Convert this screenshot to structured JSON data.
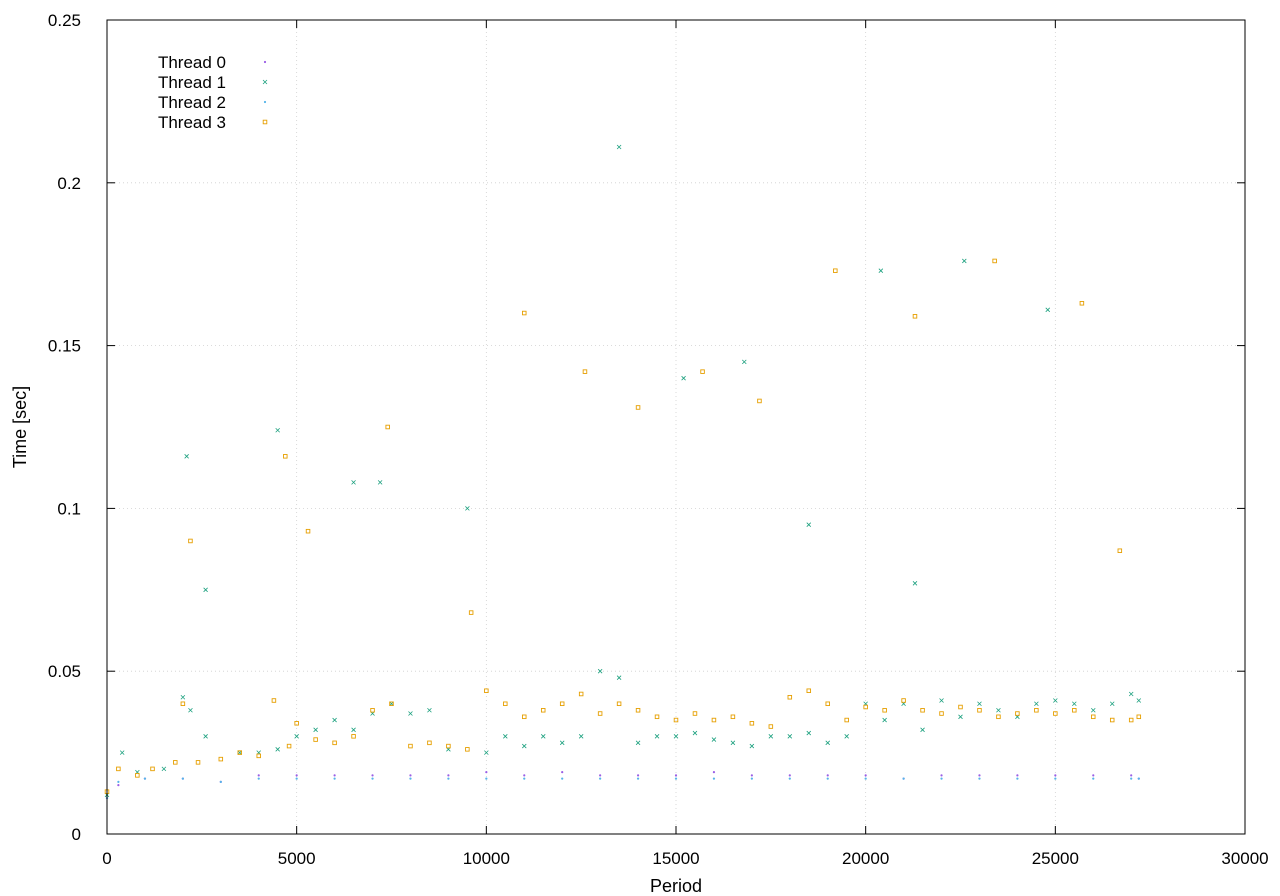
{
  "chart_data": {
    "type": "scatter",
    "xlabel": "Period",
    "ylabel": "Time [sec]",
    "xlim": [
      0,
      30000
    ],
    "ylim": [
      0,
      0.25
    ],
    "xticks": [
      "0",
      "5000",
      "10000",
      "15000",
      "20000",
      "25000",
      "30000"
    ],
    "yticks": [
      "0",
      "0.05",
      "0.1",
      "0.15",
      "0.2",
      "0.25"
    ],
    "grid": true,
    "legend_position": "top-left",
    "series": [
      {
        "name": "Thread 0",
        "color": "#9a5ee6",
        "marker": "dot",
        "points": [
          [
            0,
            0.011
          ],
          [
            300,
            0.015
          ],
          [
            1000,
            0.017
          ],
          [
            2000,
            0.017
          ],
          [
            3000,
            0.016
          ],
          [
            4000,
            0.018
          ],
          [
            5000,
            0.018
          ],
          [
            6000,
            0.018
          ],
          [
            7000,
            0.018
          ],
          [
            8000,
            0.018
          ],
          [
            9000,
            0.018
          ],
          [
            10000,
            0.019
          ],
          [
            11000,
            0.018
          ],
          [
            12000,
            0.019
          ],
          [
            13000,
            0.018
          ],
          [
            14000,
            0.018
          ],
          [
            15000,
            0.018
          ],
          [
            16000,
            0.019
          ],
          [
            17000,
            0.018
          ],
          [
            18000,
            0.018
          ],
          [
            19000,
            0.018
          ],
          [
            20000,
            0.018
          ],
          [
            21000,
            0.017
          ],
          [
            22000,
            0.018
          ],
          [
            23000,
            0.018
          ],
          [
            24000,
            0.018
          ],
          [
            25000,
            0.018
          ],
          [
            26000,
            0.018
          ],
          [
            27000,
            0.018
          ],
          [
            27200,
            0.017
          ]
        ]
      },
      {
        "name": "Thread 1",
        "color": "#1ba07e",
        "marker": "cross",
        "points": [
          [
            0,
            0.012
          ],
          [
            400,
            0.025
          ],
          [
            800,
            0.019
          ],
          [
            1500,
            0.02
          ],
          [
            2000,
            0.042
          ],
          [
            2200,
            0.038
          ],
          [
            2600,
            0.03
          ],
          [
            3500,
            0.025
          ],
          [
            4000,
            0.025
          ],
          [
            4500,
            0.026
          ],
          [
            5000,
            0.03
          ],
          [
            5500,
            0.032
          ],
          [
            6000,
            0.035
          ],
          [
            6500,
            0.032
          ],
          [
            7000,
            0.037
          ],
          [
            7500,
            0.04
          ],
          [
            8000,
            0.037
          ],
          [
            8500,
            0.038
          ],
          [
            9000,
            0.026
          ],
          [
            10000,
            0.025
          ],
          [
            10500,
            0.03
          ],
          [
            11000,
            0.027
          ],
          [
            11500,
            0.03
          ],
          [
            12000,
            0.028
          ],
          [
            12500,
            0.03
          ],
          [
            13000,
            0.05
          ],
          [
            13500,
            0.048
          ],
          [
            14000,
            0.028
          ],
          [
            14500,
            0.03
          ],
          [
            15000,
            0.03
          ],
          [
            15500,
            0.031
          ],
          [
            16000,
            0.029
          ],
          [
            16500,
            0.028
          ],
          [
            17000,
            0.027
          ],
          [
            17500,
            0.03
          ],
          [
            18000,
            0.03
          ],
          [
            18500,
            0.031
          ],
          [
            19000,
            0.028
          ],
          [
            19500,
            0.03
          ],
          [
            20000,
            0.04
          ],
          [
            20500,
            0.035
          ],
          [
            21000,
            0.04
          ],
          [
            21500,
            0.032
          ],
          [
            22000,
            0.041
          ],
          [
            22500,
            0.036
          ],
          [
            23000,
            0.04
          ],
          [
            23500,
            0.038
          ],
          [
            24000,
            0.036
          ],
          [
            24500,
            0.04
          ],
          [
            25000,
            0.041
          ],
          [
            25500,
            0.04
          ],
          [
            26000,
            0.038
          ],
          [
            26500,
            0.04
          ],
          [
            27000,
            0.043
          ],
          [
            27200,
            0.041
          ]
        ],
        "outliers": [
          [
            2100,
            0.116
          ],
          [
            2600,
            0.075
          ],
          [
            4500,
            0.124
          ],
          [
            6500,
            0.108
          ],
          [
            7200,
            0.108
          ],
          [
            9500,
            0.1
          ],
          [
            13500,
            0.211
          ],
          [
            15200,
            0.14
          ],
          [
            16800,
            0.145
          ],
          [
            18500,
            0.095
          ],
          [
            20400,
            0.173
          ],
          [
            22600,
            0.176
          ],
          [
            24800,
            0.161
          ],
          [
            21300,
            0.077
          ]
        ]
      },
      {
        "name": "Thread 2",
        "color": "#56b4e9",
        "marker": "dot",
        "points": [
          [
            0,
            0.011
          ],
          [
            300,
            0.016
          ],
          [
            1000,
            0.017
          ],
          [
            2000,
            0.017
          ],
          [
            3000,
            0.016
          ],
          [
            4000,
            0.017
          ],
          [
            5000,
            0.017
          ],
          [
            6000,
            0.017
          ],
          [
            7000,
            0.017
          ],
          [
            8000,
            0.017
          ],
          [
            9000,
            0.017
          ],
          [
            10000,
            0.017
          ],
          [
            11000,
            0.017
          ],
          [
            12000,
            0.017
          ],
          [
            13000,
            0.017
          ],
          [
            14000,
            0.017
          ],
          [
            15000,
            0.017
          ],
          [
            16000,
            0.017
          ],
          [
            17000,
            0.017
          ],
          [
            18000,
            0.017
          ],
          [
            19000,
            0.017
          ],
          [
            20000,
            0.017
          ],
          [
            21000,
            0.017
          ],
          [
            22000,
            0.017
          ],
          [
            23000,
            0.017
          ],
          [
            24000,
            0.017
          ],
          [
            25000,
            0.017
          ],
          [
            26000,
            0.017
          ],
          [
            27000,
            0.017
          ],
          [
            27200,
            0.017
          ]
        ]
      },
      {
        "name": "Thread 3",
        "color": "#e69f00",
        "marker": "square",
        "points": [
          [
            0,
            0.013
          ],
          [
            300,
            0.02
          ],
          [
            800,
            0.018
          ],
          [
            1200,
            0.02
          ],
          [
            1800,
            0.022
          ],
          [
            2000,
            0.04
          ],
          [
            2400,
            0.022
          ],
          [
            3000,
            0.023
          ],
          [
            3500,
            0.025
          ],
          [
            4000,
            0.024
          ],
          [
            4400,
            0.041
          ],
          [
            4800,
            0.027
          ],
          [
            5000,
            0.034
          ],
          [
            5500,
            0.029
          ],
          [
            6000,
            0.028
          ],
          [
            6500,
            0.03
          ],
          [
            7000,
            0.038
          ],
          [
            7500,
            0.04
          ],
          [
            8000,
            0.027
          ],
          [
            8500,
            0.028
          ],
          [
            9000,
            0.027
          ],
          [
            9500,
            0.026
          ],
          [
            10000,
            0.044
          ],
          [
            10500,
            0.04
          ],
          [
            11000,
            0.036
          ],
          [
            11500,
            0.038
          ],
          [
            12000,
            0.04
          ],
          [
            12500,
            0.043
          ],
          [
            13000,
            0.037
          ],
          [
            13500,
            0.04
          ],
          [
            14000,
            0.038
          ],
          [
            14500,
            0.036
          ],
          [
            15000,
            0.035
          ],
          [
            15500,
            0.037
          ],
          [
            16000,
            0.035
          ],
          [
            16500,
            0.036
          ],
          [
            17000,
            0.034
          ],
          [
            17500,
            0.033
          ],
          [
            18000,
            0.042
          ],
          [
            18500,
            0.044
          ],
          [
            19000,
            0.04
          ],
          [
            19500,
            0.035
          ],
          [
            20000,
            0.039
          ],
          [
            20500,
            0.038
          ],
          [
            21000,
            0.041
          ],
          [
            21500,
            0.038
          ],
          [
            22000,
            0.037
          ],
          [
            22500,
            0.039
          ],
          [
            23000,
            0.038
          ],
          [
            23500,
            0.036
          ],
          [
            24000,
            0.037
          ],
          [
            24500,
            0.038
          ],
          [
            25000,
            0.037
          ],
          [
            25500,
            0.038
          ],
          [
            26000,
            0.036
          ],
          [
            26500,
            0.035
          ],
          [
            27000,
            0.035
          ],
          [
            27200,
            0.036
          ]
        ],
        "outliers": [
          [
            2200,
            0.09
          ],
          [
            4700,
            0.116
          ],
          [
            5300,
            0.093
          ],
          [
            7400,
            0.125
          ],
          [
            11000,
            0.16
          ],
          [
            12600,
            0.142
          ],
          [
            14000,
            0.131
          ],
          [
            15700,
            0.142
          ],
          [
            17200,
            0.133
          ],
          [
            19200,
            0.173
          ],
          [
            21300,
            0.159
          ],
          [
            23400,
            0.176
          ],
          [
            25700,
            0.163
          ],
          [
            26700,
            0.087
          ],
          [
            9600,
            0.068
          ]
        ]
      }
    ]
  }
}
